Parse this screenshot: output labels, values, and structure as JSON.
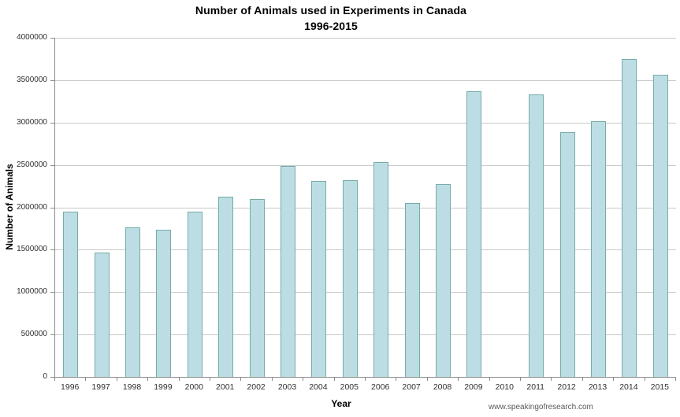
{
  "title": {
    "line1": "Number of Animals used in Experiments in Canada",
    "line2": "1996-2015"
  },
  "watermark": "www.speakingofresearch.com",
  "chart_data": {
    "type": "bar",
    "title": "Number of Animals used in Experiments in Canada 1996-2015",
    "xlabel": "Year",
    "ylabel": "Number of Animals",
    "ylim": [
      0,
      4000000
    ],
    "ytick_step": 500000,
    "yticks": [
      0,
      500000,
      1000000,
      1500000,
      2000000,
      2500000,
      3000000,
      3500000,
      4000000
    ],
    "ytick_labels": [
      "0",
      "500000",
      "1000000",
      "1500000",
      "2000000",
      "2500000",
      "3000000",
      "3500000",
      "4000000"
    ],
    "categories": [
      "1996",
      "1997",
      "1998",
      "1999",
      "2000",
      "2001",
      "2002",
      "2003",
      "2004",
      "2005",
      "2006",
      "2007",
      "2008",
      "2009",
      "2010",
      "2011",
      "2012",
      "2013",
      "2014",
      "2015"
    ],
    "values": [
      1950000,
      1470000,
      1760000,
      1740000,
      1950000,
      2130000,
      2100000,
      2490000,
      2310000,
      2320000,
      2530000,
      2050000,
      2270000,
      3370000,
      null,
      3330000,
      2890000,
      3020000,
      3750000,
      3560000
    ],
    "missing_categories": [
      "2010"
    ],
    "grid": true,
    "legend": false,
    "colors": {
      "bar_fill": "#bddde4",
      "bar_border": "#75aca7",
      "gridline": "#c9c9c9",
      "axis": "#8c8c8c",
      "tick_label": "#303030",
      "title": "#000000",
      "watermark": "#595959"
    }
  }
}
